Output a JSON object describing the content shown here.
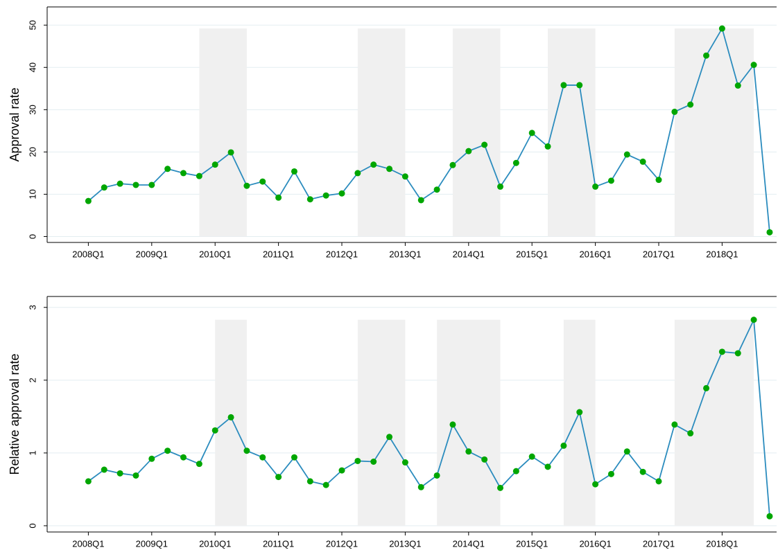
{
  "chart_data": [
    {
      "type": "line",
      "y_label": "Approval rate",
      "x": [
        2008,
        2008.25,
        2008.5,
        2008.75,
        2009,
        2009.25,
        2009.5,
        2009.75,
        2010,
        2010.25,
        2010.5,
        2010.75,
        2011,
        2011.25,
        2011.5,
        2011.75,
        2012,
        2012.25,
        2012.5,
        2012.75,
        2013,
        2013.25,
        2013.5,
        2013.75,
        2014,
        2014.25,
        2014.5,
        2014.75,
        2015,
        2015.25,
        2015.5,
        2015.75,
        2016,
        2016.25,
        2016.5,
        2016.75,
        2017,
        2017.25,
        2017.5,
        2017.75,
        2018,
        2018.25,
        2018.5,
        2018.75
      ],
      "series": [
        {
          "color": "#2b8cbe",
          "marker_color": "#00a600",
          "values": [
            8.4,
            11.6,
            12.5,
            12.2,
            12.2,
            16,
            15,
            14.3,
            17,
            19.9,
            12,
            13,
            9.2,
            15.4,
            8.8,
            9.7,
            10.2,
            15,
            17,
            16,
            14.2,
            8.6,
            11.1,
            16.9,
            20.2,
            21.7,
            11.8,
            17.4,
            24.5,
            21.3,
            35.8,
            35.8,
            11.8,
            13.2,
            19.4,
            17.7,
            13.4,
            29.5,
            31.2,
            42.8,
            49.2,
            35.7,
            40.6,
            1
          ]
        }
      ],
      "shaded": [
        [
          2009.75,
          2010.5
        ],
        [
          2012.25,
          2013
        ],
        [
          2013.75,
          2014.5
        ],
        [
          2015.25,
          2016
        ],
        [
          2017.25,
          2018.5
        ]
      ],
      "shade_color": "#f0f0f0",
      "xlim": [
        2007.35,
        2018.86
      ],
      "xticks": [
        {
          "value": 2008,
          "label": "2008Q1"
        },
        {
          "value": 2009,
          "label": "2009Q1"
        },
        {
          "value": 2010,
          "label": "2010Q1"
        },
        {
          "value": 2011,
          "label": "2011Q1"
        },
        {
          "value": 2012,
          "label": "2012Q1"
        },
        {
          "value": 2013,
          "label": "2013Q1"
        },
        {
          "value": 2014,
          "label": "2014Q1"
        },
        {
          "value": 2015,
          "label": "2015Q1"
        },
        {
          "value": 2016,
          "label": "2016Q1"
        },
        {
          "value": 2017,
          "label": "2017Q1"
        },
        {
          "value": 2018,
          "label": "2018Q1"
        }
      ],
      "ylim": [
        -1.4,
        54.3
      ],
      "yticks": [
        0,
        10,
        20,
        30,
        40,
        50
      ],
      "grid": true
    },
    {
      "type": "line",
      "y_label": "Relative approval rate",
      "x": [
        2008,
        2008.25,
        2008.5,
        2008.75,
        2009,
        2009.25,
        2009.5,
        2009.75,
        2010,
        2010.25,
        2010.5,
        2010.75,
        2011,
        2011.25,
        2011.5,
        2011.75,
        2012,
        2012.25,
        2012.5,
        2012.75,
        2013,
        2013.25,
        2013.5,
        2013.75,
        2014,
        2014.25,
        2014.5,
        2014.75,
        2015,
        2015.25,
        2015.5,
        2015.75,
        2016,
        2016.25,
        2016.5,
        2016.75,
        2017,
        2017.25,
        2017.5,
        2017.75,
        2018,
        2018.25,
        2018.5,
        2018.75
      ],
      "series": [
        {
          "color": "#2b8cbe",
          "marker_color": "#00a600",
          "values": [
            0.61,
            0.77,
            0.72,
            0.69,
            0.92,
            1.03,
            0.94,
            0.85,
            1.31,
            1.49,
            1.03,
            0.94,
            0.67,
            0.94,
            0.61,
            0.56,
            0.76,
            0.89,
            0.88,
            1.22,
            0.87,
            0.53,
            0.69,
            1.39,
            1.02,
            0.91,
            0.52,
            0.75,
            0.95,
            0.81,
            1.1,
            1.56,
            0.57,
            0.71,
            1.02,
            0.74,
            0.61,
            1.39,
            1.27,
            1.89,
            2.39,
            2.37,
            2.83,
            0.13
          ]
        }
      ],
      "shaded": [
        [
          2010,
          2010.5
        ],
        [
          2012.25,
          2013
        ],
        [
          2013.5,
          2014.5
        ],
        [
          2015.5,
          2016
        ],
        [
          2017.25,
          2018.5
        ]
      ],
      "shade_color": "#f0f0f0",
      "xlim": [
        2007.35,
        2018.86
      ],
      "xticks": [
        {
          "value": 2008,
          "label": "2008Q1"
        },
        {
          "value": 2009,
          "label": "2009Q1"
        },
        {
          "value": 2010,
          "label": "2010Q1"
        },
        {
          "value": 2011,
          "label": "2011Q1"
        },
        {
          "value": 2012,
          "label": "2012Q1"
        },
        {
          "value": 2013,
          "label": "2013Q1"
        },
        {
          "value": 2014,
          "label": "2014Q1"
        },
        {
          "value": 2015,
          "label": "2015Q1"
        },
        {
          "value": 2016,
          "label": "2016Q1"
        },
        {
          "value": 2017,
          "label": "2017Q1"
        },
        {
          "value": 2018,
          "label": "2018Q1"
        }
      ],
      "ylim": [
        -0.086,
        3.15
      ],
      "yticks": [
        0,
        1,
        2,
        3
      ],
      "grid": true
    }
  ]
}
